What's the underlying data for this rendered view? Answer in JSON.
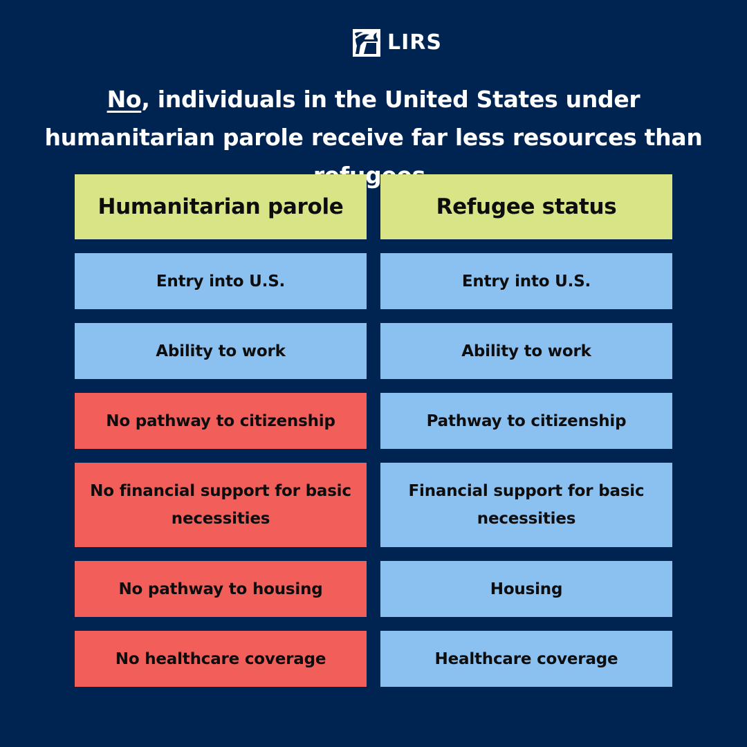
{
  "colors": {
    "background": "#002452",
    "header_fill": "#d9e487",
    "positive_fill": "#8ac1f1",
    "negative_fill": "#f25f5a",
    "text_light": "#ffffff",
    "text_dark": "#0d0d0d"
  },
  "logo": {
    "icon": "lirs-torch-icon",
    "text": "LIRS"
  },
  "headline": {
    "emphasis": "No",
    "rest": ", individuals in the United States under humanitarian parole receive far less resources than refugees."
  },
  "comparison": {
    "headers": [
      "Humanitarian parole",
      "Refugee status"
    ],
    "rows": [
      {
        "left": "Entry into U.S.",
        "left_status": "positive",
        "right": "Entry into U.S.",
        "right_status": "positive"
      },
      {
        "left": "Ability to work",
        "left_status": "positive",
        "right": "Ability to work",
        "right_status": "positive"
      },
      {
        "left": "No pathway to citizenship",
        "left_status": "negative",
        "right": "Pathway to citizenship",
        "right_status": "positive"
      },
      {
        "left": "No financial support for basic necessities",
        "left_status": "negative",
        "right": "Financial support for basic necessities",
        "right_status": "positive"
      },
      {
        "left": "No pathway to housing",
        "left_status": "negative",
        "right": "Housing",
        "right_status": "positive"
      },
      {
        "left": "No healthcare coverage",
        "left_status": "negative",
        "right": "Healthcare coverage",
        "right_status": "positive"
      }
    ]
  }
}
